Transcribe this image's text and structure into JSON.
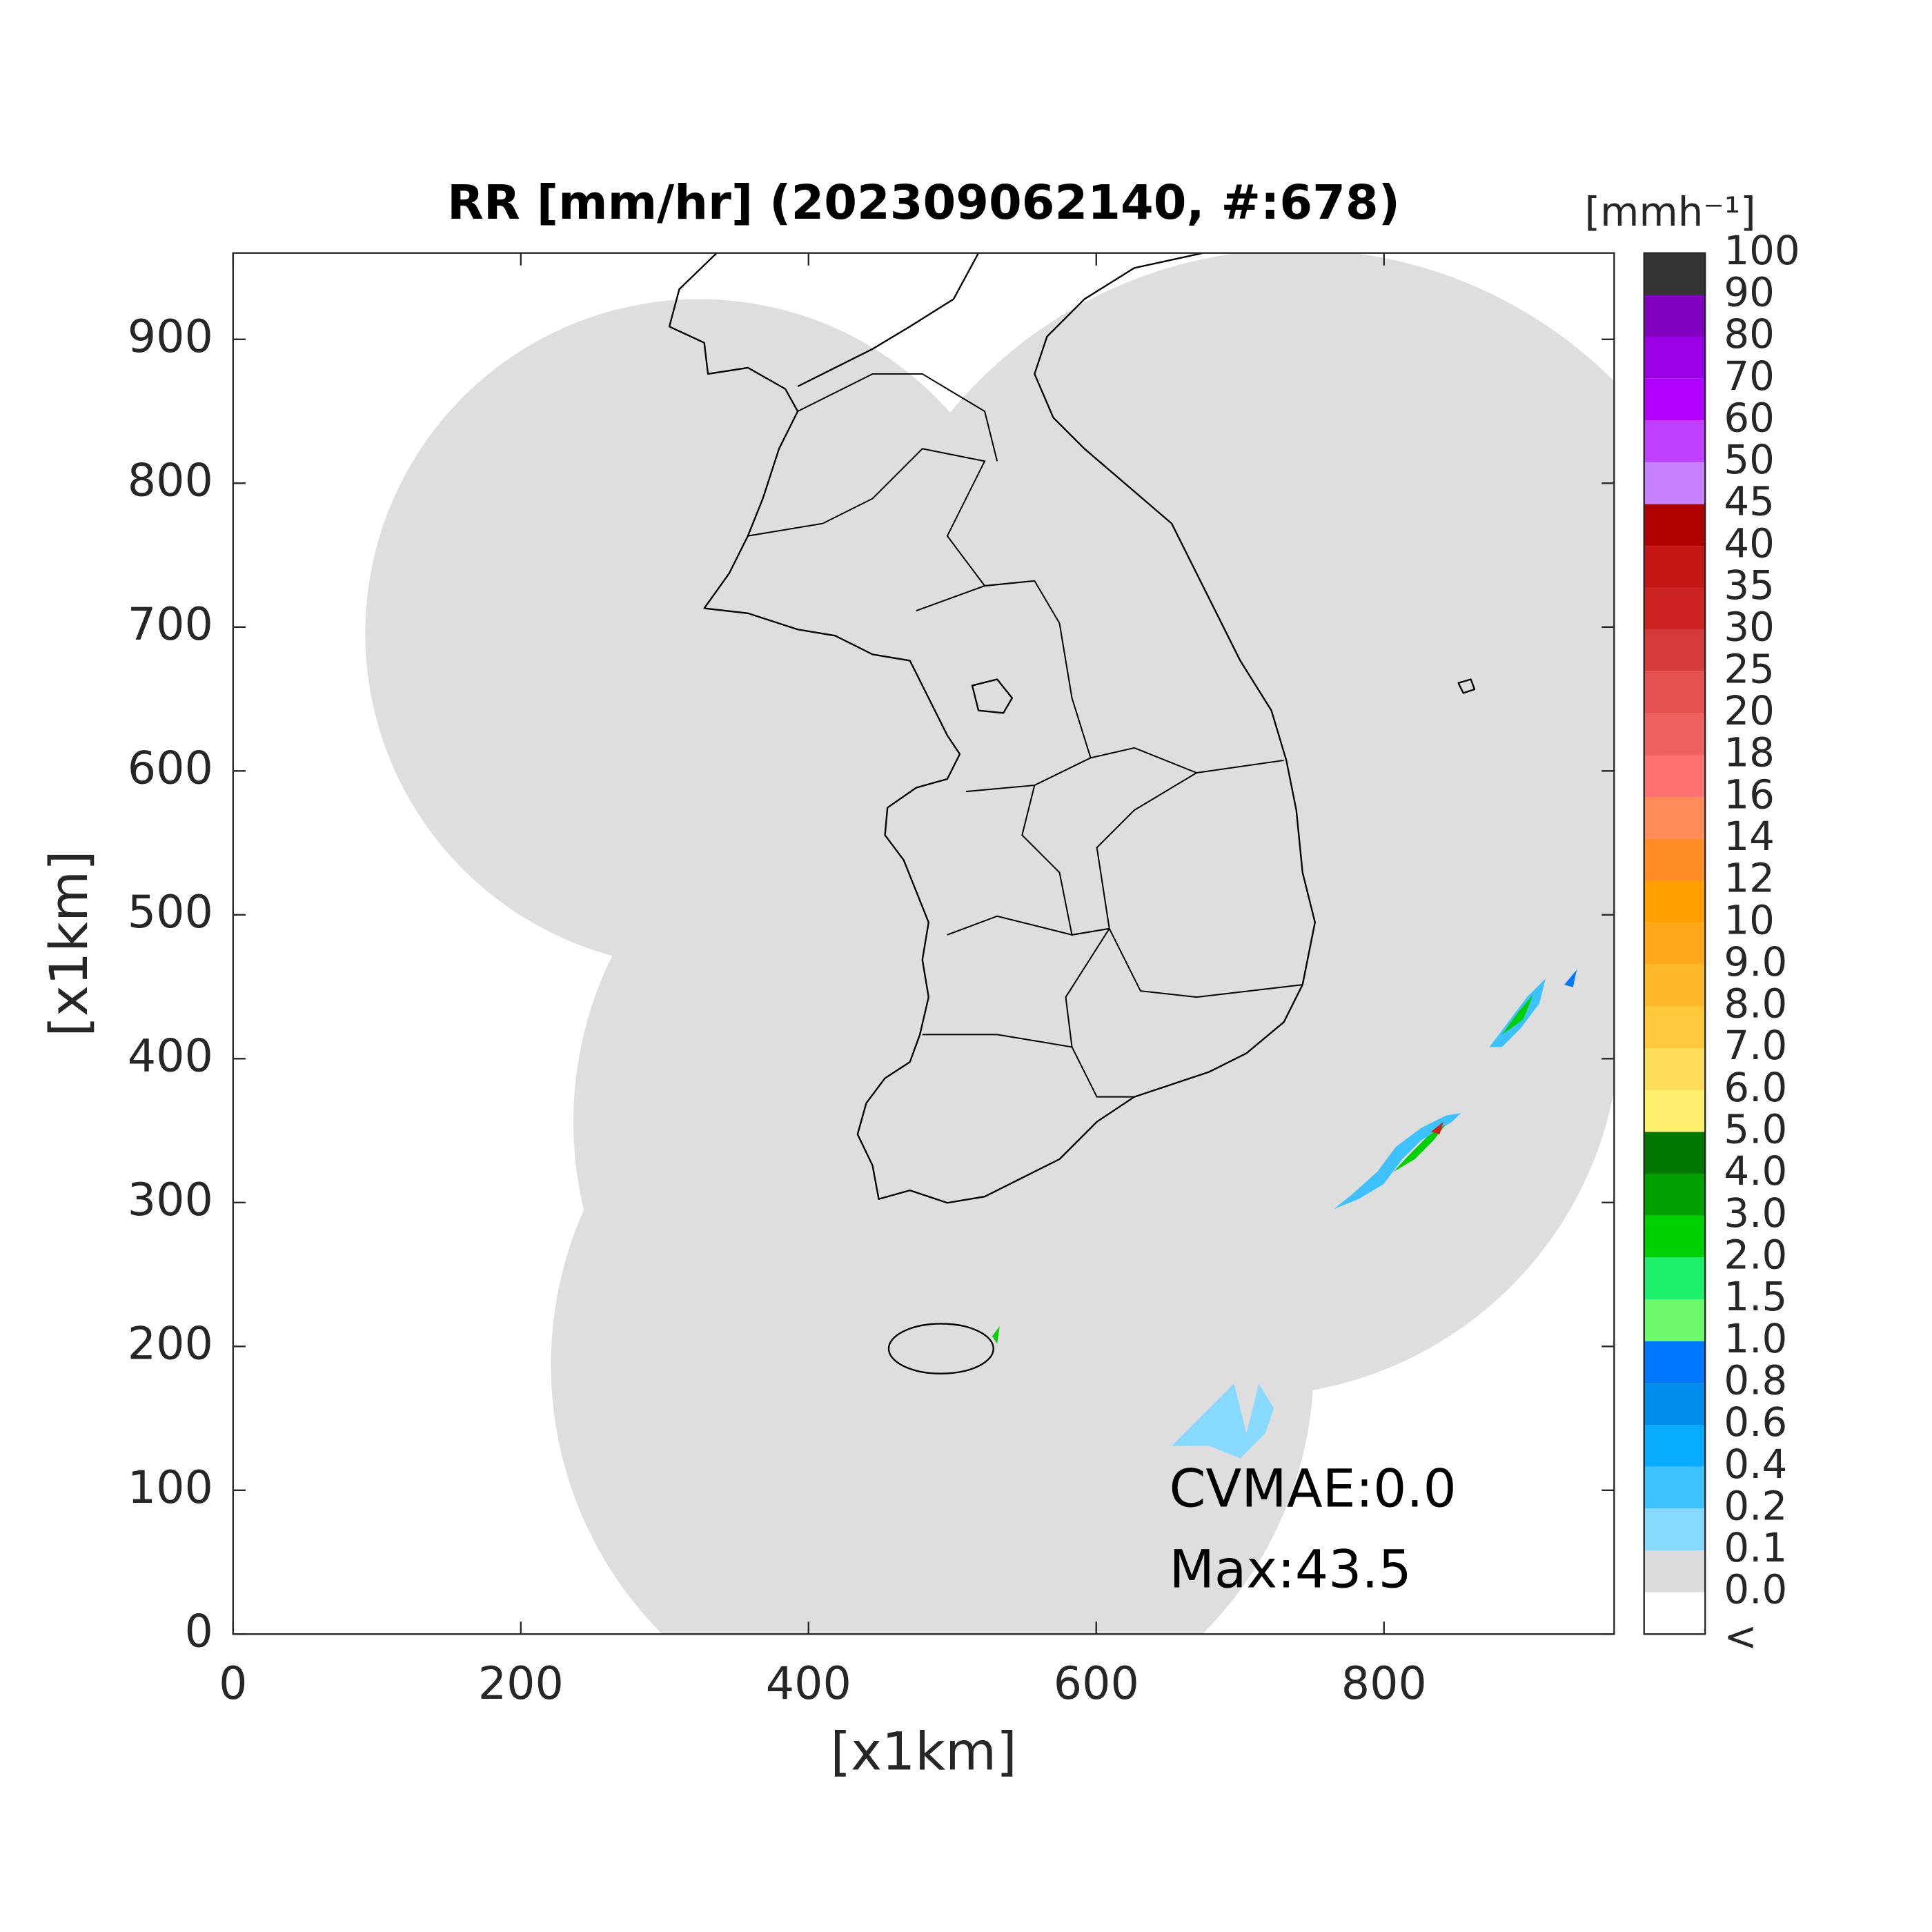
{
  "chart_data": {
    "type": "map",
    "title": "RR [mm/hr] (202309062140, #:678)",
    "xlabel": "[x1km]",
    "ylabel": "[x1km]",
    "xlim": [
      0,
      960
    ],
    "ylim": [
      0,
      960
    ],
    "xticks": [
      0,
      200,
      400,
      600,
      800
    ],
    "yticks": [
      0,
      100,
      200,
      300,
      400,
      500,
      600,
      700,
      800,
      900
    ],
    "colorbar": {
      "unit": "[mmh⁻¹]",
      "labels": [
        "<",
        "0.0",
        "0.1",
        "0.2",
        "0.4",
        "0.6",
        "0.8",
        "1.0",
        "1.5",
        "2.0",
        "3.0",
        "4.0",
        "5.0",
        "6.0",
        "7.0",
        "8.0",
        "9.0",
        "10",
        "12",
        "14",
        "16",
        "18",
        "20",
        "25",
        "30",
        "35",
        "40",
        "45",
        "50",
        "60",
        "70",
        "80",
        "90",
        "100"
      ],
      "colors": [
        "#ffffff",
        "#dddddd",
        "#87d9ff",
        "#3ec1ff",
        "#07abff",
        "#008dee",
        "#0077ff",
        "#6cfa6c",
        "#1ef06e",
        "#00d000",
        "#00a000",
        "#007800",
        "#fff06e",
        "#ffdc5c",
        "#ffc83d",
        "#ffb829",
        "#ffa81a",
        "#ffa000",
        "#ff8c26",
        "#ff8a5a",
        "#ff7070",
        "#f06060",
        "#e55050",
        "#d63a3a",
        "#cc2222",
        "#c41515",
        "#b00000",
        "#c882ff",
        "#c040ff",
        "#b000ff",
        "#9900e6",
        "#8000c0",
        "#333333"
      ]
    },
    "annotations": [
      "CVMAE:0.0",
      "Max:43.5"
    ]
  }
}
